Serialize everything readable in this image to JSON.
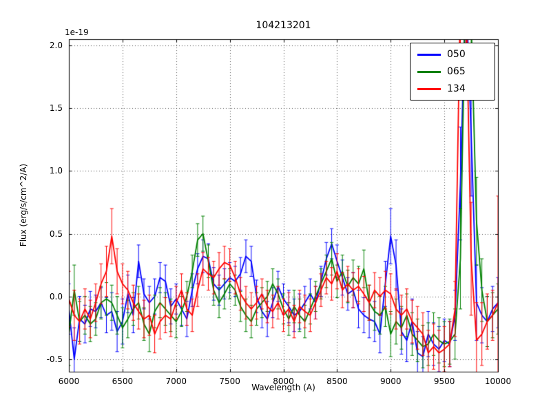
{
  "chart_data": {
    "type": "line",
    "error_bars": true,
    "title": "104213201",
    "xlabel": "Wavelength (A)",
    "ylabel": "Flux (erg/s/cm^2/A)",
    "offset_text": "1e-19",
    "xlim": [
      6000,
      10000
    ],
    "ylim": [
      -0.6,
      2.05
    ],
    "grid": true,
    "legend_position": "upper right",
    "xticks": [
      6000,
      6500,
      7000,
      7500,
      8000,
      8500,
      9000,
      9500,
      10000
    ],
    "xtick_labels": [
      "6000",
      "6500",
      "7000",
      "7500",
      "8000",
      "8500",
      "9000",
      "9500",
      "10000"
    ],
    "yticks": [
      -0.5,
      0.0,
      0.5,
      1.0,
      1.5,
      2.0
    ],
    "ytick_labels": [
      "-0.5",
      "0.0",
      "0.5",
      "1.0",
      "1.5",
      "2.0"
    ],
    "x": [
      6000,
      6050,
      6100,
      6150,
      6200,
      6250,
      6300,
      6350,
      6400,
      6450,
      6500,
      6550,
      6600,
      6650,
      6700,
      6750,
      6800,
      6850,
      6900,
      6950,
      7000,
      7050,
      7100,
      7150,
      7200,
      7250,
      7300,
      7350,
      7400,
      7450,
      7500,
      7550,
      7600,
      7650,
      7700,
      7750,
      7800,
      7850,
      7900,
      7950,
      8000,
      8050,
      8100,
      8150,
      8200,
      8250,
      8300,
      8350,
      8400,
      8450,
      8500,
      8550,
      8600,
      8650,
      8700,
      8750,
      8800,
      8850,
      8900,
      8950,
      9000,
      9050,
      9100,
      9150,
      9200,
      9250,
      9300,
      9350,
      9400,
      9450,
      9500,
      9550,
      9600,
      9650,
      9700,
      9750,
      9800,
      9850,
      9900,
      9950,
      10000
    ],
    "series": [
      {
        "name": "050",
        "color": "#0000ff",
        "values": [
          -0.1,
          -0.5,
          -0.18,
          -0.22,
          -0.1,
          -0.12,
          -0.05,
          -0.15,
          -0.12,
          -0.28,
          -0.2,
          0.02,
          -0.15,
          0.28,
          0.02,
          -0.05,
          0.0,
          0.15,
          0.12,
          -0.08,
          -0.02,
          -0.1,
          -0.18,
          0.05,
          0.22,
          0.32,
          0.3,
          0.1,
          0.05,
          0.1,
          0.15,
          0.12,
          0.18,
          0.32,
          0.28,
          0.0,
          -0.12,
          -0.18,
          -0.05,
          0.08,
          -0.02,
          -0.08,
          -0.15,
          -0.12,
          -0.05,
          0.02,
          -0.05,
          0.12,
          0.3,
          0.42,
          0.28,
          0.15,
          0.02,
          0.05,
          -0.1,
          -0.15,
          -0.18,
          -0.2,
          -0.3,
          0.1,
          0.48,
          0.25,
          -0.28,
          -0.35,
          -0.2,
          -0.45,
          -0.48,
          -0.3,
          -0.38,
          -0.42,
          -0.35,
          -0.38,
          -0.15,
          0.9,
          2.5,
          1.3,
          -0.05,
          -0.15,
          -0.2,
          -0.1,
          -0.05
        ],
        "errors": [
          0.2,
          0.25,
          0.18,
          0.15,
          0.14,
          0.13,
          0.12,
          0.14,
          0.15,
          0.16,
          0.18,
          0.15,
          0.14,
          0.13,
          0.12,
          0.13,
          0.14,
          0.12,
          0.13,
          0.14,
          0.12,
          0.13,
          0.14,
          0.13,
          0.12,
          0.13,
          0.12,
          0.13,
          0.12,
          0.12,
          0.12,
          0.12,
          0.13,
          0.13,
          0.12,
          0.13,
          0.13,
          0.14,
          0.12,
          0.12,
          0.12,
          0.13,
          0.13,
          0.14,
          0.13,
          0.12,
          0.13,
          0.12,
          0.13,
          0.12,
          0.13,
          0.14,
          0.13,
          0.14,
          0.15,
          0.14,
          0.15,
          0.16,
          0.15,
          0.18,
          0.22,
          0.2,
          0.18,
          0.17,
          0.18,
          0.17,
          0.16,
          0.18,
          0.17,
          0.18,
          0.17,
          0.18,
          0.2,
          0.45,
          0.55,
          0.5,
          0.3,
          0.22,
          0.2,
          0.18,
          0.2
        ]
      },
      {
        "name": "065",
        "color": "#008000",
        "values": [
          -0.3,
          0.05,
          -0.2,
          -0.15,
          -0.22,
          -0.18,
          -0.05,
          -0.02,
          -0.05,
          -0.15,
          -0.25,
          -0.18,
          -0.1,
          -0.05,
          -0.22,
          -0.3,
          -0.12,
          -0.05,
          -0.1,
          -0.15,
          -0.2,
          -0.12,
          0.0,
          0.2,
          0.45,
          0.5,
          0.28,
          0.05,
          -0.05,
          0.02,
          0.1,
          0.05,
          -0.08,
          -0.15,
          -0.2,
          -0.1,
          -0.05,
          0.0,
          0.1,
          0.02,
          -0.1,
          -0.18,
          -0.08,
          -0.15,
          -0.2,
          -0.1,
          0.0,
          0.1,
          0.2,
          0.3,
          0.12,
          0.2,
          0.08,
          0.15,
          0.1,
          0.22,
          -0.05,
          -0.12,
          -0.15,
          -0.08,
          -0.3,
          -0.2,
          -0.25,
          -0.15,
          -0.3,
          -0.35,
          -0.4,
          -0.38,
          -0.3,
          -0.35,
          -0.38,
          -0.36,
          -0.3,
          0.3,
          2.6,
          2.2,
          0.6,
          0.05,
          -0.2,
          -0.15,
          -0.1
        ],
        "errors": [
          0.25,
          0.2,
          0.16,
          0.15,
          0.14,
          0.13,
          0.13,
          0.13,
          0.14,
          0.15,
          0.16,
          0.15,
          0.13,
          0.13,
          0.13,
          0.14,
          0.13,
          0.12,
          0.13,
          0.13,
          0.13,
          0.12,
          0.12,
          0.13,
          0.13,
          0.14,
          0.13,
          0.12,
          0.12,
          0.12,
          0.12,
          0.12,
          0.12,
          0.13,
          0.13,
          0.13,
          0.12,
          0.12,
          0.12,
          0.12,
          0.12,
          0.13,
          0.13,
          0.13,
          0.13,
          0.12,
          0.12,
          0.12,
          0.13,
          0.13,
          0.13,
          0.13,
          0.13,
          0.14,
          0.14,
          0.15,
          0.14,
          0.15,
          0.15,
          0.16,
          0.18,
          0.18,
          0.17,
          0.17,
          0.17,
          0.17,
          0.17,
          0.17,
          0.17,
          0.18,
          0.18,
          0.18,
          0.2,
          0.4,
          0.55,
          0.5,
          0.35,
          0.25,
          0.2,
          0.18,
          0.2
        ]
      },
      {
        "name": "134",
        "color": "#ff0000",
        "values": [
          -0.02,
          -0.15,
          -0.2,
          -0.1,
          -0.18,
          -0.05,
          0.1,
          0.2,
          0.48,
          0.2,
          0.1,
          0.05,
          -0.05,
          -0.12,
          -0.18,
          -0.15,
          -0.3,
          -0.2,
          -0.15,
          -0.18,
          -0.05,
          0.05,
          -0.1,
          -0.15,
          0.05,
          0.22,
          0.18,
          0.15,
          0.22,
          0.27,
          0.25,
          0.15,
          0.02,
          -0.05,
          -0.1,
          -0.05,
          0.02,
          -0.08,
          -0.12,
          -0.05,
          -0.15,
          -0.1,
          -0.2,
          -0.08,
          -0.12,
          -0.15,
          -0.05,
          0.05,
          0.15,
          0.1,
          0.2,
          0.05,
          0.1,
          0.05,
          0.08,
          0.02,
          -0.05,
          0.05,
          0.0,
          0.05,
          0.02,
          -0.1,
          -0.15,
          -0.1,
          -0.2,
          -0.25,
          -0.3,
          -0.45,
          -0.4,
          -0.45,
          -0.42,
          -0.38,
          -0.1,
          2.4,
          2.5,
          0.3,
          -0.35,
          -0.3,
          -0.2,
          -0.15,
          -0.05
        ],
        "errors": [
          0.22,
          0.2,
          0.18,
          0.16,
          0.15,
          0.15,
          0.16,
          0.2,
          0.22,
          0.18,
          0.16,
          0.15,
          0.14,
          0.14,
          0.15,
          0.16,
          0.15,
          0.14,
          0.14,
          0.14,
          0.13,
          0.13,
          0.13,
          0.13,
          0.13,
          0.13,
          0.13,
          0.13,
          0.13,
          0.13,
          0.13,
          0.13,
          0.13,
          0.13,
          0.13,
          0.13,
          0.12,
          0.13,
          0.13,
          0.13,
          0.13,
          0.13,
          0.13,
          0.13,
          0.13,
          0.13,
          0.13,
          0.13,
          0.13,
          0.13,
          0.14,
          0.14,
          0.14,
          0.14,
          0.14,
          0.14,
          0.14,
          0.14,
          0.15,
          0.15,
          0.16,
          0.16,
          0.16,
          0.16,
          0.17,
          0.17,
          0.17,
          0.18,
          0.18,
          0.18,
          0.18,
          0.18,
          0.22,
          0.55,
          0.6,
          0.45,
          0.3,
          0.25,
          0.22,
          0.2,
          0.85
        ]
      }
    ]
  }
}
